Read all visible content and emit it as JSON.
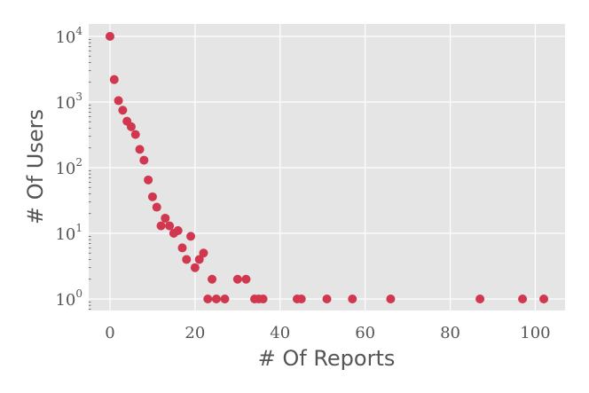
{
  "chart_data": {
    "type": "scatter",
    "title": "",
    "xlabel": "# Of Reports",
    "ylabel": "# Of Users",
    "xlim": [
      -5,
      107
    ],
    "ylim": [
      0.68,
      14000
    ],
    "yscale": "log",
    "grid": true,
    "legend": "none",
    "background_color": "#e5e5e5",
    "grid_color": "#ffffff",
    "marker_color": "#d1374f",
    "xticks": [
      0,
      20,
      40,
      60,
      80,
      100
    ],
    "xtick_labels": [
      "0",
      "20",
      "40",
      "60",
      "80",
      "100"
    ],
    "yticks": [
      1,
      10,
      100,
      1000,
      10000
    ],
    "ytick_labels": [
      {
        "base": "10",
        "exp": "0"
      },
      {
        "base": "10",
        "exp": "1"
      },
      {
        "base": "10",
        "exp": "2"
      },
      {
        "base": "10",
        "exp": "3"
      },
      {
        "base": "10",
        "exp": "4"
      }
    ],
    "points": [
      [
        0,
        10000
      ],
      [
        1,
        2200
      ],
      [
        2,
        1050
      ],
      [
        3,
        750
      ],
      [
        4,
        510
      ],
      [
        5,
        420
      ],
      [
        6,
        320
      ],
      [
        7,
        190
      ],
      [
        8,
        130
      ],
      [
        9,
        65
      ],
      [
        10,
        36
      ],
      [
        11,
        25
      ],
      [
        12,
        13
      ],
      [
        13,
        17
      ],
      [
        14,
        13
      ],
      [
        15,
        10
      ],
      [
        16,
        11
      ],
      [
        17,
        6
      ],
      [
        18,
        4
      ],
      [
        19,
        9
      ],
      [
        20,
        3
      ],
      [
        21,
        4
      ],
      [
        22,
        5
      ],
      [
        23,
        1
      ],
      [
        24,
        2
      ],
      [
        25,
        1
      ],
      [
        27,
        1
      ],
      [
        30,
        2
      ],
      [
        32,
        2
      ],
      [
        34,
        1
      ],
      [
        35,
        1
      ],
      [
        36,
        1
      ],
      [
        44,
        1
      ],
      [
        45,
        1
      ],
      [
        51,
        1
      ],
      [
        57,
        1
      ],
      [
        66,
        1
      ],
      [
        87,
        1
      ],
      [
        97,
        1
      ],
      [
        102,
        1
      ]
    ]
  }
}
